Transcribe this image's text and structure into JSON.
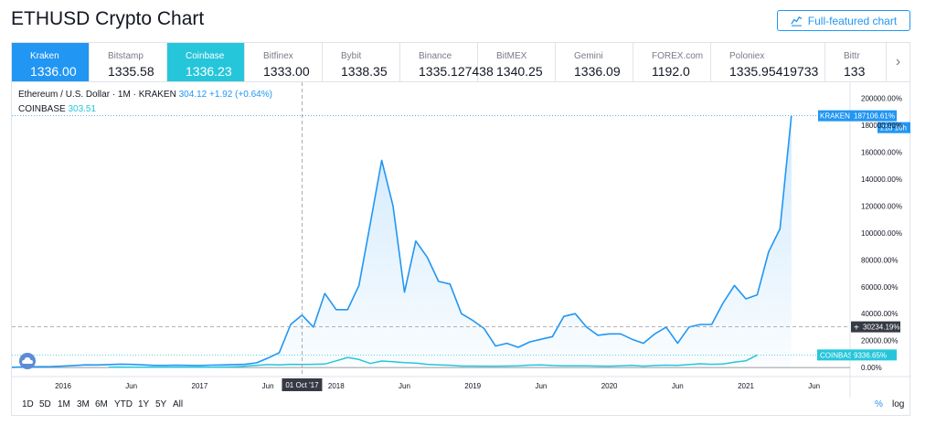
{
  "header": {
    "title": "ETHUSD Crypto Chart",
    "full_featured_label": "Full-featured chart"
  },
  "tabs": [
    {
      "exchange": "Kraken",
      "price": "1336.00",
      "state": "active-kraken"
    },
    {
      "exchange": "Bitstamp",
      "price": "1335.58",
      "state": ""
    },
    {
      "exchange": "Coinbase",
      "price": "1336.23",
      "state": "active-coinbase"
    },
    {
      "exchange": "Bitfinex",
      "price": "1333.00",
      "state": ""
    },
    {
      "exchange": "Bybit",
      "price": "1338.35",
      "state": ""
    },
    {
      "exchange": "Binance",
      "price": "1335.127438",
      "state": ""
    },
    {
      "exchange": "BitMEX",
      "price": "1340.25",
      "state": ""
    },
    {
      "exchange": "Gemini",
      "price": "1336.09",
      "state": ""
    },
    {
      "exchange": "FOREX.com",
      "price": "1192.0",
      "state": ""
    },
    {
      "exchange": "Poloniex",
      "price": "1335.95419733",
      "state": ""
    },
    {
      "exchange": "Bittr",
      "price": "133",
      "state": ""
    }
  ],
  "legend": {
    "symbol": "Ethereum / U.S. Dollar · 1M · KRAKEN",
    "kraken_value": "304.12 +1.92 (+0.64%)",
    "coinbase_label": "COINBASE",
    "coinbase_value": "303.51"
  },
  "chart_data": {
    "type": "line",
    "x_type": "monthly",
    "x_start": "2015-08",
    "x_labels": [
      "2016",
      "Jun",
      "2017",
      "Jun",
      "2018",
      "Jun",
      "2019",
      "Jun",
      "2020",
      "Jun",
      "2021",
      "Jun"
    ],
    "y_unit": "%",
    "ylim": [
      -4000,
      212000
    ],
    "y_ticks": [
      0,
      20000,
      40000,
      60000,
      80000,
      100000,
      120000,
      140000,
      160000,
      180000,
      200000
    ],
    "y_tick_labels": [
      "0.00%",
      "20000.00%",
      "40000.00%",
      "60000.00%",
      "80000.00%",
      "100000.00%",
      "120000.00%",
      "140000.00%",
      "160000.00%",
      "180000.00%",
      "200000.00%"
    ],
    "series": [
      {
        "name": "KRAKEN",
        "color": "#2196f3",
        "x_start": "2015-08",
        "values": [
          0,
          300,
          500,
          600,
          700,
          1000,
          1500,
          2000,
          1900,
          2200,
          2500,
          2300,
          2000,
          1600,
          1600,
          1700,
          1600,
          1500,
          1800,
          1900,
          2200,
          2400,
          3500,
          7000,
          11000,
          32000,
          39000,
          30000,
          55000,
          43000,
          43000,
          61000,
          107000,
          154000,
          120000,
          56000,
          94000,
          82000,
          64000,
          62000,
          40000,
          35000,
          29000,
          16000,
          18000,
          15000,
          19000,
          21000,
          23000,
          38000,
          40000,
          30000,
          24000,
          25000,
          25000,
          21000,
          18000,
          25000,
          30000,
          18000,
          30000,
          32000,
          32000,
          48000,
          61000,
          51000,
          54000,
          86000,
          103000,
          187106.61
        ],
        "last_label": "187106.61%"
      },
      {
        "name": "COINBASE",
        "color": "#26c6da",
        "x_start": "2016-05",
        "values": [
          300,
          350,
          300,
          300,
          250,
          250,
          250,
          220,
          240,
          300,
          350,
          500,
          1000,
          1600,
          2200,
          2000,
          2400,
          2300,
          2400,
          2600,
          5000,
          7500,
          6000,
          3000,
          4800,
          4300,
          3600,
          3300,
          2400,
          2000,
          1700,
          1100,
          1100,
          1000,
          1000,
          1100,
          1200,
          1800,
          2000,
          1500,
          1200,
          1300,
          1300,
          1100,
          1000,
          1300,
          1600,
          1000,
          1500,
          1800,
          1600,
          2200,
          2800,
          2400,
          2600,
          4000,
          5000,
          9336.65
        ],
        "last_label": "9336.65%"
      }
    ],
    "crosshair": {
      "x_label": "01 Oct '17",
      "y_label": "30234.19%",
      "y_value": 30234.19
    },
    "countdown_label": "21d 16h",
    "grid": false
  },
  "bottombar": {
    "ranges": [
      "1D",
      "5D",
      "1M",
      "3M",
      "6M",
      "YTD",
      "1Y",
      "5Y",
      "All"
    ],
    "percent_label": "%",
    "log_label": "log"
  },
  "colors": {
    "kraken": "#2196f3",
    "coinbase": "#26c6da",
    "text": "#131722",
    "muted": "#787b86",
    "border": "#e0e3eb"
  }
}
